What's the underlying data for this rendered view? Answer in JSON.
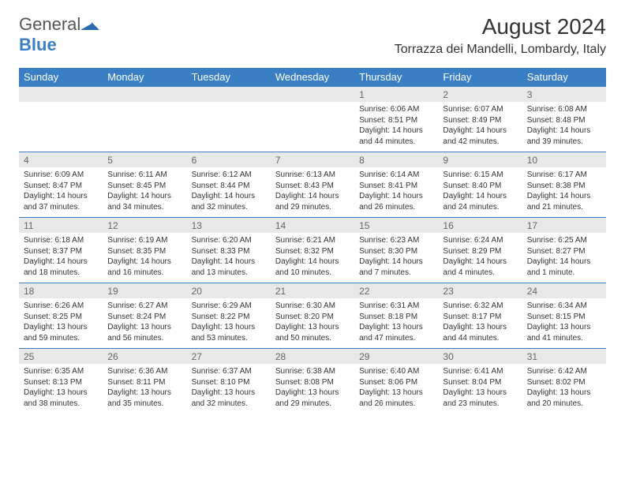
{
  "logo": {
    "text1": "General",
    "text2": "Blue",
    "icon_color": "#2a6bb0"
  },
  "title": "August 2024",
  "location": "Torrazza dei Mandelli, Lombardy, Italy",
  "colors": {
    "header_bg": "#3a7fc4",
    "header_text": "#ffffff",
    "numrow_bg": "#e8e8e8",
    "numrow_text": "#666666",
    "border": "#3a7fc4",
    "body_text": "#333333"
  },
  "day_headers": [
    "Sunday",
    "Monday",
    "Tuesday",
    "Wednesday",
    "Thursday",
    "Friday",
    "Saturday"
  ],
  "weeks": [
    {
      "nums": [
        "",
        "",
        "",
        "",
        "1",
        "2",
        "3"
      ],
      "cells": [
        "",
        "",
        "",
        "",
        "Sunrise: 6:06 AM\nSunset: 8:51 PM\nDaylight: 14 hours and 44 minutes.",
        "Sunrise: 6:07 AM\nSunset: 8:49 PM\nDaylight: 14 hours and 42 minutes.",
        "Sunrise: 6:08 AM\nSunset: 8:48 PM\nDaylight: 14 hours and 39 minutes."
      ]
    },
    {
      "nums": [
        "4",
        "5",
        "6",
        "7",
        "8",
        "9",
        "10"
      ],
      "cells": [
        "Sunrise: 6:09 AM\nSunset: 8:47 PM\nDaylight: 14 hours and 37 minutes.",
        "Sunrise: 6:11 AM\nSunset: 8:45 PM\nDaylight: 14 hours and 34 minutes.",
        "Sunrise: 6:12 AM\nSunset: 8:44 PM\nDaylight: 14 hours and 32 minutes.",
        "Sunrise: 6:13 AM\nSunset: 8:43 PM\nDaylight: 14 hours and 29 minutes.",
        "Sunrise: 6:14 AM\nSunset: 8:41 PM\nDaylight: 14 hours and 26 minutes.",
        "Sunrise: 6:15 AM\nSunset: 8:40 PM\nDaylight: 14 hours and 24 minutes.",
        "Sunrise: 6:17 AM\nSunset: 8:38 PM\nDaylight: 14 hours and 21 minutes."
      ]
    },
    {
      "nums": [
        "11",
        "12",
        "13",
        "14",
        "15",
        "16",
        "17"
      ],
      "cells": [
        "Sunrise: 6:18 AM\nSunset: 8:37 PM\nDaylight: 14 hours and 18 minutes.",
        "Sunrise: 6:19 AM\nSunset: 8:35 PM\nDaylight: 14 hours and 16 minutes.",
        "Sunrise: 6:20 AM\nSunset: 8:33 PM\nDaylight: 14 hours and 13 minutes.",
        "Sunrise: 6:21 AM\nSunset: 8:32 PM\nDaylight: 14 hours and 10 minutes.",
        "Sunrise: 6:23 AM\nSunset: 8:30 PM\nDaylight: 14 hours and 7 minutes.",
        "Sunrise: 6:24 AM\nSunset: 8:29 PM\nDaylight: 14 hours and 4 minutes.",
        "Sunrise: 6:25 AM\nSunset: 8:27 PM\nDaylight: 14 hours and 1 minute."
      ]
    },
    {
      "nums": [
        "18",
        "19",
        "20",
        "21",
        "22",
        "23",
        "24"
      ],
      "cells": [
        "Sunrise: 6:26 AM\nSunset: 8:25 PM\nDaylight: 13 hours and 59 minutes.",
        "Sunrise: 6:27 AM\nSunset: 8:24 PM\nDaylight: 13 hours and 56 minutes.",
        "Sunrise: 6:29 AM\nSunset: 8:22 PM\nDaylight: 13 hours and 53 minutes.",
        "Sunrise: 6:30 AM\nSunset: 8:20 PM\nDaylight: 13 hours and 50 minutes.",
        "Sunrise: 6:31 AM\nSunset: 8:18 PM\nDaylight: 13 hours and 47 minutes.",
        "Sunrise: 6:32 AM\nSunset: 8:17 PM\nDaylight: 13 hours and 44 minutes.",
        "Sunrise: 6:34 AM\nSunset: 8:15 PM\nDaylight: 13 hours and 41 minutes."
      ]
    },
    {
      "nums": [
        "25",
        "26",
        "27",
        "28",
        "29",
        "30",
        "31"
      ],
      "cells": [
        "Sunrise: 6:35 AM\nSunset: 8:13 PM\nDaylight: 13 hours and 38 minutes.",
        "Sunrise: 6:36 AM\nSunset: 8:11 PM\nDaylight: 13 hours and 35 minutes.",
        "Sunrise: 6:37 AM\nSunset: 8:10 PM\nDaylight: 13 hours and 32 minutes.",
        "Sunrise: 6:38 AM\nSunset: 8:08 PM\nDaylight: 13 hours and 29 minutes.",
        "Sunrise: 6:40 AM\nSunset: 8:06 PM\nDaylight: 13 hours and 26 minutes.",
        "Sunrise: 6:41 AM\nSunset: 8:04 PM\nDaylight: 13 hours and 23 minutes.",
        "Sunrise: 6:42 AM\nSunset: 8:02 PM\nDaylight: 13 hours and 20 minutes."
      ]
    }
  ]
}
